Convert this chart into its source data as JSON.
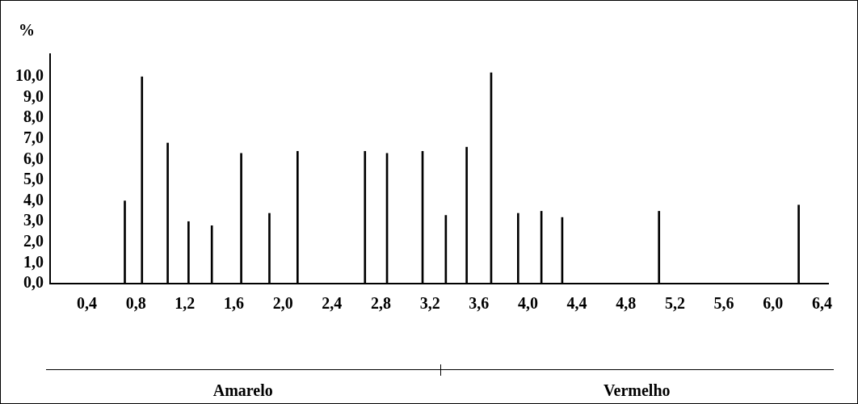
{
  "chart_data": {
    "type": "bar",
    "ylabel": "%",
    "x": [
      0.71,
      0.85,
      1.06,
      1.23,
      1.42,
      1.66,
      1.89,
      2.12,
      2.67,
      2.85,
      3.14,
      3.33,
      3.5,
      3.7,
      3.92,
      4.11,
      4.28,
      5.07,
      6.21
    ],
    "values": [
      4.0,
      10.0,
      6.8,
      3.0,
      2.8,
      6.3,
      3.4,
      6.4,
      6.4,
      6.3,
      6.4,
      3.3,
      6.6,
      10.2,
      3.4,
      3.5,
      3.2,
      3.5,
      3.8
    ],
    "color": "#000000",
    "xlim": [
      0.1,
      6.45
    ],
    "xticks": [
      {
        "value": 0.4,
        "label": "0,4"
      },
      {
        "value": 0.8,
        "label": "0,8"
      },
      {
        "value": 1.2,
        "label": "1,2"
      },
      {
        "value": 1.6,
        "label": "1,6"
      },
      {
        "value": 2.0,
        "label": "2,0"
      },
      {
        "value": 2.4,
        "label": "2,4"
      },
      {
        "value": 2.8,
        "label": "2,8"
      },
      {
        "value": 3.2,
        "label": "3,2"
      },
      {
        "value": 3.6,
        "label": "3,6"
      },
      {
        "value": 4.0,
        "label": "4,0"
      },
      {
        "value": 4.4,
        "label": "4,4"
      },
      {
        "value": 4.8,
        "label": "4,8"
      },
      {
        "value": 5.2,
        "label": "5,2"
      },
      {
        "value": 5.6,
        "label": "5,6"
      },
      {
        "value": 6.0,
        "label": "6,0"
      },
      {
        "value": 6.4,
        "label": "6,4"
      }
    ],
    "ylim": [
      0,
      11.1
    ],
    "yticks": [
      {
        "value": 0,
        "label": "0,0"
      },
      {
        "value": 1,
        "label": "1,0"
      },
      {
        "value": 2,
        "label": "2,0"
      },
      {
        "value": 3,
        "label": "3,0"
      },
      {
        "value": 4,
        "label": "4,0"
      },
      {
        "value": 5,
        "label": "5,0"
      },
      {
        "value": 6,
        "label": "6,0"
      },
      {
        "value": 7,
        "label": "7,0"
      },
      {
        "value": 8,
        "label": "8,0"
      },
      {
        "value": 9,
        "label": "9,0"
      },
      {
        "value": 10,
        "label": "10,0"
      }
    ],
    "annotations": [
      "Amarelo",
      "Vermelho"
    ],
    "grid": false,
    "legend": false
  }
}
